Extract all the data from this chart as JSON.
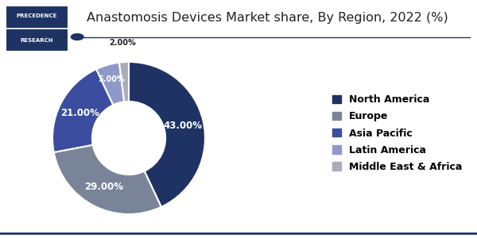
{
  "title": "Anastomosis Devices Market share, By Region, 2022 (%)",
  "slices": [
    43.0,
    29.0,
    21.0,
    5.0,
    2.0
  ],
  "labels": [
    "North America",
    "Europe",
    "Asia Pacific",
    "Latin America",
    "Middle East & Africa"
  ],
  "colors": [
    "#1e3364",
    "#7a8499",
    "#3b4d9e",
    "#8f99c9",
    "#a8adb8"
  ],
  "pct_labels": [
    "43.00%",
    "29.00%",
    "21.00%",
    "5.00%",
    "2.00%"
  ],
  "startangle": 90,
  "background_color": "#ffffff",
  "title_fontsize": 11.5,
  "legend_fontsize": 9,
  "logo_top_color": "#1e3364",
  "logo_bottom_color": "#1e3364",
  "line_color": "#1e3364"
}
